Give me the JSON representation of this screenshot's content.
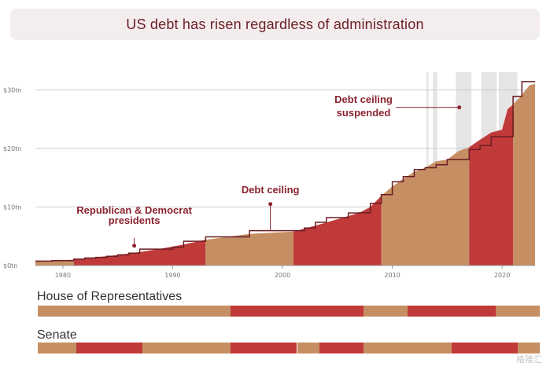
{
  "title": "US debt has risen regardless of administration",
  "colors": {
    "republican": "#c13a3a",
    "democrat": "#c68f63",
    "suspended": "#e5e5e5",
    "ceiling": "#6b1d25",
    "grid": "#cccccc",
    "annotation": "#8a2430"
  },
  "chart_data": {
    "type": "area",
    "title": "US debt has risen regardless of administration",
    "x_range": [
      1977.5,
      2023
    ],
    "ylim": [
      0,
      33
    ],
    "y_ticks": [
      {
        "value": 0,
        "label": "$0tn"
      },
      {
        "value": 10,
        "label": "$10tn"
      },
      {
        "value": 20,
        "label": "$20tn"
      },
      {
        "value": 30,
        "label": "$30tn"
      }
    ],
    "x_ticks": [
      {
        "value": 1980,
        "label": "1980"
      },
      {
        "value": 1990,
        "label": "1990"
      },
      {
        "value": 2000,
        "label": "2000"
      },
      {
        "value": 2010,
        "label": "2010"
      },
      {
        "value": 2020,
        "label": "2020"
      }
    ],
    "debt": {
      "x": [
        1977.5,
        1979,
        1981,
        1983,
        1985,
        1987,
        1989,
        1991,
        1993,
        1995,
        1997,
        1999,
        2001,
        2003,
        2005,
        2007,
        2008,
        2009,
        2010,
        2011,
        2012,
        2013,
        2014,
        2015,
        2016,
        2017,
        2018,
        2019,
        2020,
        2020.5,
        2021,
        2021.5,
        2022,
        2022.5,
        2023
      ],
      "y": [
        0.7,
        0.8,
        1.0,
        1.4,
        1.8,
        2.3,
        2.9,
        3.6,
        4.4,
        4.9,
        5.4,
        5.6,
        5.8,
        6.8,
        7.9,
        9.0,
        10.0,
        11.9,
        13.5,
        14.8,
        16.0,
        16.7,
        17.8,
        18.1,
        19.5,
        20.2,
        21.5,
        22.7,
        23.2,
        26.7,
        27.5,
        28.5,
        29.6,
        30.8,
        31.0
      ]
    },
    "ceiling": {
      "x": [
        1977.5,
        1979,
        1981,
        1982,
        1983,
        1984,
        1985,
        1986,
        1987,
        1988,
        1990,
        1991,
        1993,
        1995,
        1997,
        2002,
        2003,
        2004,
        2006,
        2007,
        2008,
        2009,
        2010,
        2011,
        2012,
        2013,
        2014,
        2015,
        2016,
        2017,
        2018,
        2019,
        2020,
        2021,
        2021.5,
        2021.8,
        2022,
        2023
      ],
      "y": [
        0.75,
        0.85,
        1.08,
        1.29,
        1.39,
        1.57,
        1.82,
        2.11,
        2.8,
        2.8,
        3.12,
        4.15,
        4.9,
        4.9,
        5.95,
        6.4,
        7.38,
        8.18,
        8.97,
        9.0,
        10.6,
        12.1,
        14.3,
        15.2,
        16.4,
        16.7,
        17.2,
        18.1,
        18.1,
        19.8,
        20.5,
        22.0,
        22.0,
        28.9,
        28.9,
        31.4,
        31.4,
        31.4
      ]
    },
    "administrations": [
      {
        "start": 1977.5,
        "end": 1981,
        "party": "Democrat"
      },
      {
        "start": 1981,
        "end": 1993,
        "party": "Republican"
      },
      {
        "start": 1993,
        "end": 2001,
        "party": "Democrat"
      },
      {
        "start": 2001,
        "end": 2009,
        "party": "Republican"
      },
      {
        "start": 2009,
        "end": 2017,
        "party": "Democrat"
      },
      {
        "start": 2017,
        "end": 2021,
        "party": "Republican"
      },
      {
        "start": 2021,
        "end": 2023,
        "party": "Democrat"
      }
    ],
    "suspended_periods": [
      {
        "start": 2013.1,
        "end": 2013.3
      },
      {
        "start": 2013.7,
        "end": 2014.1
      },
      {
        "start": 2015.8,
        "end": 2017.2
      },
      {
        "start": 2018.1,
        "end": 2019.5
      },
      {
        "start": 2019.7,
        "end": 2021.4
      }
    ],
    "annotations": [
      {
        "text": [
          "Republican & Democrat",
          "presidents"
        ],
        "x": 1986.5,
        "y": 5.5
      },
      {
        "text": [
          "Debt ceiling"
        ],
        "x": 1998.9,
        "y": 10.5
      },
      {
        "text": [
          "Debt ceiling",
          "suspended"
        ],
        "x": 2016.1,
        "y": 27
      }
    ]
  },
  "house": {
    "label": "House of Representatives",
    "segments": [
      {
        "start": 1977.5,
        "end": 1995,
        "party": "Democrat"
      },
      {
        "start": 1995,
        "end": 2007,
        "party": "Republican"
      },
      {
        "start": 2007,
        "end": 2011,
        "party": "Democrat"
      },
      {
        "start": 2011,
        "end": 2019,
        "party": "Republican"
      },
      {
        "start": 2019,
        "end": 2023,
        "party": "Democrat"
      }
    ]
  },
  "senate": {
    "label": "Senate",
    "segments": [
      {
        "start": 1977.5,
        "end": 1981,
        "party": "Democrat"
      },
      {
        "start": 1981,
        "end": 1987,
        "party": "Republican"
      },
      {
        "start": 1987,
        "end": 1995,
        "party": "Democrat"
      },
      {
        "start": 1995,
        "end": 2001,
        "party": "Republican"
      },
      {
        "start": 2001,
        "end": 2003,
        "party": "Democrat"
      },
      {
        "start": 2003,
        "end": 2007,
        "party": "Republican"
      },
      {
        "start": 2007,
        "end": 2015,
        "party": "Democrat"
      },
      {
        "start": 2015,
        "end": 2021,
        "party": "Republican"
      },
      {
        "start": 2021,
        "end": 2023,
        "party": "Democrat"
      }
    ]
  },
  "watermark": "格隆汇"
}
